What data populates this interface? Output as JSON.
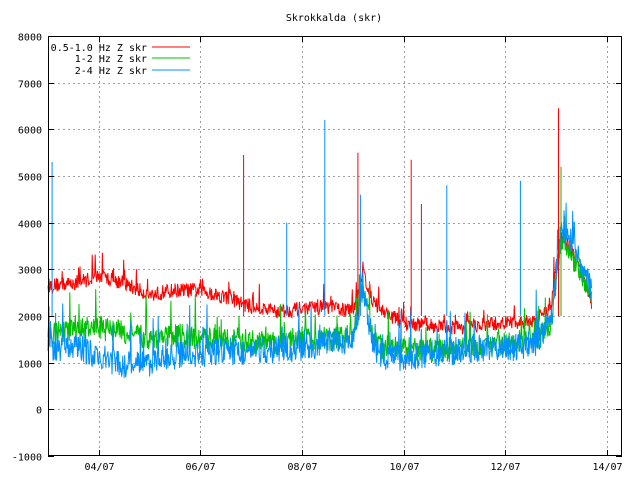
{
  "chart_data": {
    "type": "line",
    "title": "Skrokkalda (skr)",
    "xlabel": "",
    "ylabel": "",
    "ylim": [
      -1000,
      8000
    ],
    "yticks": [
      -1000,
      0,
      1000,
      2000,
      3000,
      4000,
      5000,
      6000,
      7000,
      8000
    ],
    "xlim_days": [
      0,
      11.3
    ],
    "xticks": [
      {
        "label": "04/07",
        "day": 1
      },
      {
        "label": "06/07",
        "day": 3
      },
      {
        "label": "08/07",
        "day": 5
      },
      {
        "label": "10/07",
        "day": 7
      },
      {
        "label": "12/07",
        "day": 9
      },
      {
        "label": "14/07",
        "day": 11
      }
    ],
    "grid": true,
    "legend_position": "top-left",
    "series": [
      {
        "name": "0.5-1.0 Hz Z skr",
        "color": "#ff0000",
        "x": [
          0,
          0.5,
          1.0,
          1.5,
          2.0,
          2.5,
          3.0,
          3.5,
          4.0,
          4.5,
          5.0,
          5.5,
          6.0,
          6.2,
          6.4,
          6.6,
          7.0,
          7.5,
          8.0,
          8.5,
          9.0,
          9.3,
          9.6,
          9.9,
          10.1,
          10.3,
          10.5,
          10.7
        ],
        "y": [
          2650,
          2700,
          2850,
          2700,
          2450,
          2550,
          2550,
          2400,
          2200,
          2100,
          2150,
          2200,
          2100,
          2950,
          2300,
          2100,
          1850,
          1800,
          1750,
          1800,
          1850,
          1850,
          1900,
          2200,
          3800,
          3400,
          2900,
          2300
        ]
      },
      {
        "name": "1-2 Hz Z skr",
        "color": "#00c000",
        "x": [
          0,
          0.5,
          1.0,
          1.5,
          2.0,
          2.5,
          3.0,
          3.5,
          4.0,
          4.5,
          5.0,
          5.5,
          6.0,
          6.2,
          6.4,
          6.6,
          7.0,
          7.5,
          8.0,
          8.5,
          9.0,
          9.3,
          9.6,
          9.9,
          10.1,
          10.3,
          10.5,
          10.7
        ],
        "y": [
          1550,
          1700,
          1750,
          1650,
          1500,
          1600,
          1500,
          1550,
          1450,
          1400,
          1550,
          1500,
          1600,
          2700,
          1500,
          1300,
          1300,
          1250,
          1300,
          1350,
          1400,
          1450,
          1500,
          1800,
          3700,
          3300,
          2900,
          2500
        ]
      },
      {
        "name": "2-4 Hz Z skr",
        "color": "#0090ff",
        "x": [
          0,
          0.5,
          1.0,
          1.5,
          2.0,
          2.5,
          3.0,
          3.5,
          4.0,
          4.5,
          5.0,
          5.5,
          6.0,
          6.2,
          6.4,
          6.6,
          7.0,
          7.5,
          8.0,
          8.5,
          9.0,
          9.3,
          9.6,
          9.9,
          10.1,
          10.3,
          10.5,
          10.7
        ],
        "y": [
          1250,
          1400,
          1100,
          950,
          1000,
          1150,
          1200,
          1250,
          1200,
          1300,
          1300,
          1400,
          1450,
          2700,
          1350,
          1150,
          1100,
          1200,
          1250,
          1300,
          1300,
          1350,
          1400,
          1900,
          3800,
          3600,
          3000,
          2600
        ]
      }
    ],
    "spikes": [
      {
        "series": 2,
        "day": 0.08,
        "value": 5300
      },
      {
        "series": 0,
        "day": 3.85,
        "value": 5450
      },
      {
        "series": 2,
        "day": 4.7,
        "value": 4000
      },
      {
        "series": 2,
        "day": 5.45,
        "value": 6200
      },
      {
        "series": 0,
        "day": 6.1,
        "value": 5500
      },
      {
        "series": 2,
        "day": 6.15,
        "value": 4600
      },
      {
        "series": 0,
        "day": 7.15,
        "value": 5350
      },
      {
        "series": 0,
        "day": 7.35,
        "value": 4400
      },
      {
        "series": 2,
        "day": 7.85,
        "value": 4800
      },
      {
        "series": 2,
        "day": 9.3,
        "value": 4900
      },
      {
        "series": 0,
        "day": 10.05,
        "value": 6450
      },
      {
        "series": 1,
        "day": 10.1,
        "value": 5200
      }
    ]
  }
}
